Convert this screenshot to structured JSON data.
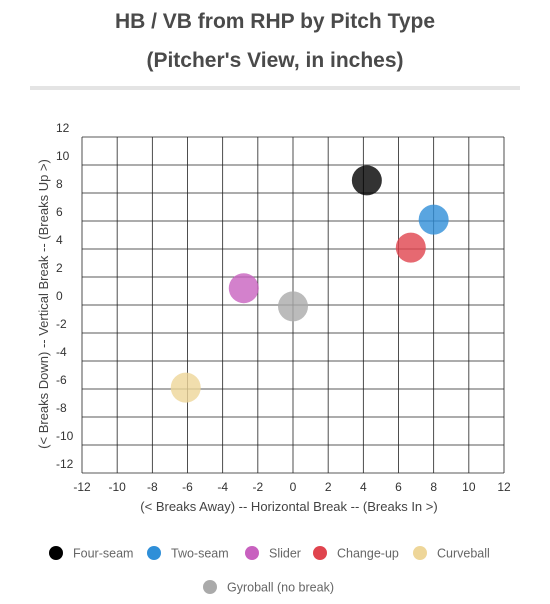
{
  "title": "HB / VB from RHP by Pitch Type",
  "subtitle": "(Pitcher's View, in inches)",
  "chart_data": {
    "type": "scatter",
    "title": "HB / VB from RHP by Pitch Type",
    "subtitle": "(Pitcher's View, in inches)",
    "xlabel": "(< Breaks Away) -- Horizontal Break -- (Breaks In >)",
    "ylabel": "(< Breaks Down) -- Vertical Break -- (Breaks Up >)",
    "xlim": [
      -12,
      12
    ],
    "ylim": [
      -12,
      12
    ],
    "xticks": [
      -12,
      -10,
      -8,
      -6,
      -4,
      -2,
      0,
      2,
      4,
      6,
      8,
      10,
      12
    ],
    "yticks": [
      12,
      10,
      8,
      6,
      4,
      2,
      0,
      -2,
      -4,
      -6,
      -8,
      -10,
      -12
    ],
    "grid": true,
    "legend_position": "bottom",
    "series": [
      {
        "name": "Four-seam",
        "color": "#000000",
        "x": 4.2,
        "y": 8.9
      },
      {
        "name": "Two-seam",
        "color": "#2f8fd8",
        "x": 8.0,
        "y": 6.1
      },
      {
        "name": "Slider",
        "color": "#c861bf",
        "x": -2.8,
        "y": 1.2
      },
      {
        "name": "Change-up",
        "color": "#e0444e",
        "x": 6.7,
        "y": 4.1
      },
      {
        "name": "Curveball",
        "color": "#eed699",
        "x": -6.1,
        "y": -5.9
      },
      {
        "name": "Gyroball (no break)",
        "color": "#aaaaaa",
        "x": 0.0,
        "y": -0.1
      }
    ]
  }
}
